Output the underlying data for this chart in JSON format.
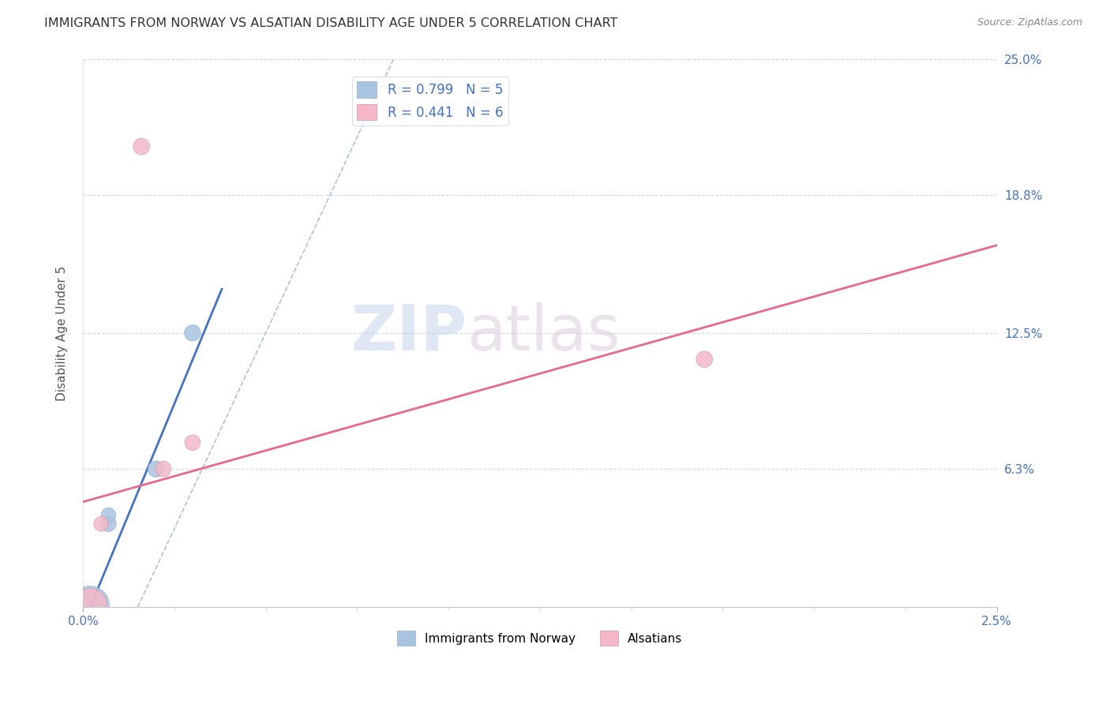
{
  "title": "IMMIGRANTS FROM NORWAY VS ALSATIAN DISABILITY AGE UNDER 5 CORRELATION CHART",
  "source": "Source: ZipAtlas.com",
  "ylabel": "Disability Age Under 5",
  "xlim": [
    0.0,
    0.025
  ],
  "ylim": [
    0.0,
    0.25
  ],
  "ytick_values": [
    0.0,
    0.063,
    0.125,
    0.188,
    0.25
  ],
  "ytick_labels": [
    "0.0%",
    "6.3%",
    "12.5%",
    "18.8%",
    "25.0%"
  ],
  "watermark_zip": "ZIP",
  "watermark_atlas": "atlas",
  "norway_points": [
    [
      0.0002,
      0.001
    ],
    [
      0.0007,
      0.038
    ],
    [
      0.0007,
      0.042
    ],
    [
      0.002,
      0.063
    ],
    [
      0.003,
      0.125
    ]
  ],
  "norway_sizes": [
    1200,
    200,
    180,
    220,
    220
  ],
  "alsatian_points": [
    [
      0.0002,
      0.001
    ],
    [
      0.0005,
      0.038
    ],
    [
      0.0016,
      0.21
    ],
    [
      0.0022,
      0.063
    ],
    [
      0.003,
      0.075
    ],
    [
      0.017,
      0.113
    ]
  ],
  "alsatian_sizes": [
    900,
    180,
    220,
    200,
    200,
    220
  ],
  "norway_color": "#a8c4e0",
  "norway_line_color": "#4472c4",
  "alsatian_color": "#f4b8c8",
  "alsatian_line_color": "#e8698a",
  "norway_R": "0.799",
  "norway_N": "5",
  "alsatian_R": "0.441",
  "alsatian_N": "6",
  "legend_label_norway": "Immigrants from Norway",
  "legend_label_alsatian": "Alsatians",
  "grid_color": "#d0d8e8",
  "background_color": "#ffffff",
  "title_color": "#333333",
  "tick_label_color": "#4472c4",
  "norway_line_x": [
    0.0002,
    0.0038
  ],
  "norway_line_y": [
    0.0,
    0.145
  ],
  "alsatian_line_x": [
    0.0,
    0.025
  ],
  "alsatian_line_y": [
    0.048,
    0.165
  ],
  "diag_line_x": [
    0.0015,
    0.0085
  ],
  "diag_line_y": [
    0.0,
    0.25
  ]
}
